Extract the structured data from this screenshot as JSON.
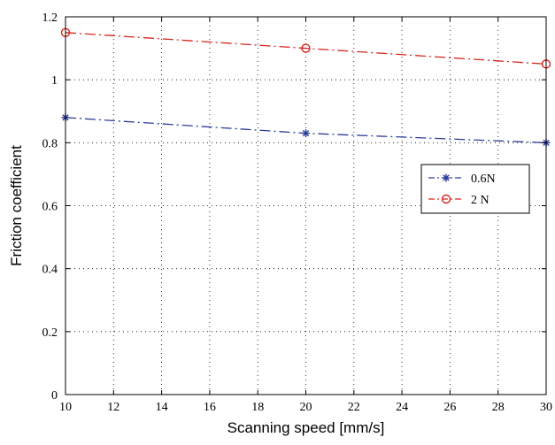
{
  "chart_data": {
    "type": "line",
    "title": "",
    "xlabel": "Scanning speed [mm/s]",
    "ylabel": "Friction coefficient",
    "xlim": [
      10,
      30
    ],
    "ylim": [
      0,
      1.2
    ],
    "xticks": [
      10,
      12,
      14,
      16,
      18,
      20,
      22,
      24,
      26,
      28,
      30
    ],
    "yticks": [
      0,
      0.2,
      0.4,
      0.6,
      0.8,
      1,
      1.2
    ],
    "grid": true,
    "legend_position": "right-middle",
    "series": [
      {
        "name": "0.6N",
        "color": "#2b3d9a",
        "marker": "asterisk",
        "line_style": "dash-dot",
        "x": [
          10,
          20,
          30
        ],
        "y": [
          0.88,
          0.83,
          0.8
        ]
      },
      {
        "name": "2 N",
        "color": "#d7261e",
        "marker": "circle",
        "line_style": "dash-dot",
        "x": [
          10,
          20,
          30
        ],
        "y": [
          1.15,
          1.1,
          1.05
        ]
      }
    ]
  }
}
